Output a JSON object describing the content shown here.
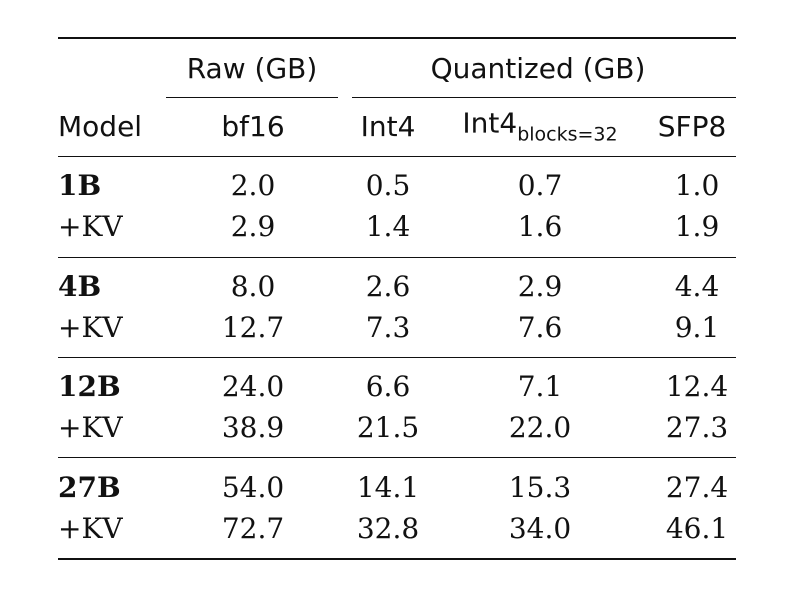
{
  "header": {
    "group_raw": "Raw (GB)",
    "group_quantized": "Quantized (GB)",
    "col_model": "Model",
    "col_bf16": "bf16",
    "col_int4": "Int4",
    "col_int4_blocks_main": "Int4",
    "col_int4_blocks_sub": "blocks=32",
    "col_sfp8": "SFP8"
  },
  "rows": [
    {
      "model": "1B",
      "kv_label": "+KV",
      "base": [
        "2.0",
        "0.5",
        "0.7",
        "1.0"
      ],
      "kv": [
        "2.9",
        "1.4",
        "1.6",
        "1.9"
      ]
    },
    {
      "model": "4B",
      "kv_label": "+KV",
      "base": [
        "8.0",
        "2.6",
        "2.9",
        "4.4"
      ],
      "kv": [
        "12.7",
        "7.3",
        "7.6",
        "9.1"
      ]
    },
    {
      "model": "12B",
      "kv_label": "+KV",
      "base": [
        "24.0",
        "6.6",
        "7.1",
        "12.4"
      ],
      "kv": [
        "38.9",
        "21.5",
        "22.0",
        "27.3"
      ]
    },
    {
      "model": "27B",
      "kv_label": "+KV",
      "base": [
        "54.0",
        "14.1",
        "15.3",
        "27.4"
      ],
      "kv": [
        "72.7",
        "32.8",
        "34.0",
        "46.1"
      ]
    }
  ]
}
